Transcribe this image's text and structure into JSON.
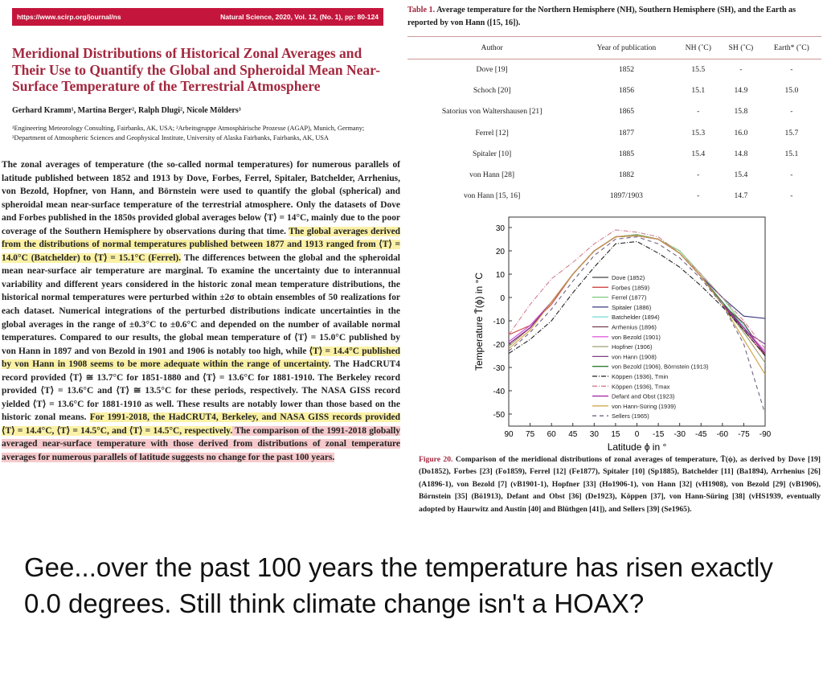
{
  "header": {
    "url": "https://www.scirp.org/journal/ns",
    "citation": "Natural Science, 2020, Vol. 12, (No. 1), pp: 80-124"
  },
  "paper": {
    "title": "Meridional Distributions of Historical Zonal Averages and Their Use to Quantify the Global and Spheroidal Mean Near-Surface Temperature of the Terrestrial Atmosphere",
    "authors": "Gerhard Kramm¹, Martina Berger², Ralph Dlugi², Nicole Mölders³",
    "affiliations": "¹Engineering Meteorology Consulting, Fairbanks, AK, USA; ²Arbeitsgruppe Atmosphärische Prozesse (AGAP), Munich, Germany; ³Department of Atmospheric Sciences and Geophysical Institute, University of Alaska Fairbanks, Fairbanks, AK, USA",
    "abstract": {
      "p1": "The zonal averages of temperature (the so-called normal temperatures) for numerous parallels of latitude published between 1852 and 1913 by Dove, Forbes, Ferrel, Spitaler, Batchelder, Arrhenius, von Bezold, Hopfner, von Hann, and Börnstein were used to quantify the global (spherical) and spheroidal mean near-surface temperature of the terrestrial atmosphere. Only the datasets of Dove and Forbes published in the 1850s provided global averages below ⟨T⟩ = 14°C, mainly due to the poor coverage of the Southern Hemisphere by observations during that time. ",
      "h1": "The global averages derived from the distributions of normal temperatures published between 1877 and 1913 ranged from ⟨T⟩ = 14.0°C (Batchelder) to ⟨T⟩ = 15.1°C (Ferrel).",
      "p2": " The differences between the global and the spheroidal mean near-surface air temperature are marginal. To examine the uncertainty due to interannual variability and different years considered in the historic zonal mean temperature distributions, the historical normal temperatures were perturbed within ±2σ to obtain ensembles of 50 realizations for each dataset. Numerical integrations of the perturbed distributions indicate uncertainties in the global averages in the range of ±0.3°C to ±0.6°C and depended on the number of available normal temperatures. Compared to our results, the global mean temperature of ⟨T⟩ = 15.0°C published by von Hann in 1897 and von Bezold in 1901 and 1906 is notably too high, while ",
      "h2": "⟨T⟩ = 14.4°C published by von Hann in 1908 seems to be more adequate within the range of uncertainty",
      "p3": ". The HadCRUT4 record provided ⟨T⟩ ≅ 13.7°C for 1851-1880 and ⟨T⟩ = 13.6°C for 1881-1910. The Berkeley record provided ⟨T⟩ = 13.6°C and ⟨T⟩ ≅ 13.5°C for these periods, respectively. The NASA GISS record yielded ⟨T⟩ = 13.6°C for 1881-1910 as well. These results are notably lower than those based on the historic zonal means. ",
      "h3": "For 1991-2018, the HadCRUT4, Berkeley, and NASA GISS records provided ⟨T⟩ = 14.4°C, ⟨T⟩ = 14.5°C, and ⟨T⟩ = 14.5°C, respectively.",
      "h4": " The comparison of the 1991-2018 globally averaged near-surface temperature with those derived from distributions of zonal temperature averages for numerous parallels of latitude suggests no change for the past 100 years."
    }
  },
  "table": {
    "label": "Table 1.",
    "caption": " Average temperature for the Northern Hemisphere (NH), Southern Hemisphere (SH), and the Earth as reported by von Hann ([15, 16]).",
    "headers": [
      "Author",
      "Year of publication",
      "NH (˚C)",
      "SH (˚C)",
      "Earth* (˚C)"
    ],
    "rows": [
      [
        "Dove [19]",
        "1852",
        "15.5",
        "-",
        "-"
      ],
      [
        "Schoch [20]",
        "1856",
        "15.1",
        "14.9",
        "15.0"
      ],
      [
        "Satorius von Waltershausen [21]",
        "1865",
        "-",
        "15.8",
        "-"
      ],
      [
        "Ferrel [12]",
        "1877",
        "15.3",
        "16.0",
        "15.7"
      ],
      [
        "Spitaler [10]",
        "1885",
        "15.4",
        "14.8",
        "15.1"
      ],
      [
        "von Hann [28]",
        "1882",
        "-",
        "15.4",
        "-"
      ],
      [
        "von Hann [15, 16]",
        "1897/1903",
        "-",
        "14.7",
        "-"
      ]
    ]
  },
  "chart_data": {
    "type": "line",
    "xlabel": "Latitude ϕ in °",
    "ylabel": "Temperature T̄(ϕ) in °C",
    "xlim": [
      90,
      -90
    ],
    "ylim": [
      -55,
      33
    ],
    "xticks": [
      90,
      75,
      60,
      45,
      30,
      15,
      0,
      -15,
      -30,
      -45,
      -60,
      -75,
      -90
    ],
    "yticks": [
      30,
      20,
      10,
      0,
      -10,
      -20,
      -30,
      -40,
      -50
    ],
    "legend_position": "center-right",
    "x": [
      90,
      75,
      60,
      45,
      30,
      15,
      0,
      -15,
      -30,
      -45,
      -60,
      -75,
      -90
    ],
    "series": [
      {
        "name": "Dove (1852)",
        "color": "#444444",
        "dash": "",
        "values": [
          -20,
          -13,
          -2,
          10,
          20,
          26,
          26.5,
          25,
          19,
          9,
          -2,
          -13,
          -24
        ]
      },
      {
        "name": "Forbes (1859)",
        "color": "#d04848",
        "dash": "",
        "values": [
          -16,
          -12,
          -3,
          10,
          20,
          26,
          27,
          25,
          19,
          9,
          -2,
          -14,
          -25
        ]
      },
      {
        "name": "Ferrel (1877)",
        "color": "#7cc97c",
        "dash": "",
        "values": [
          -20,
          -13,
          -2,
          10,
          20,
          26,
          27,
          25,
          20,
          10,
          0,
          -12,
          -24
        ]
      },
      {
        "name": "Spitaler (1886)",
        "color": "#3a3a80",
        "dash": "",
        "values": [
          -19,
          -12,
          -2,
          10,
          20,
          26,
          26.5,
          25,
          19,
          9,
          0,
          -8,
          -9
        ]
      },
      {
        "name": "Batchelder (1894)",
        "color": "#80dede",
        "dash": "",
        "values": [
          -20,
          -13,
          -2,
          10,
          20,
          26,
          26.5,
          25,
          19,
          9,
          -2,
          -12,
          -24
        ]
      },
      {
        "name": "Arrhenius (1896)",
        "color": "#704050",
        "dash": "",
        "values": [
          -20,
          -13,
          -2,
          10,
          20,
          26,
          26.5,
          25,
          19,
          9,
          -3,
          -11,
          -25
        ]
      },
      {
        "name": "von Bezold (1901)",
        "color": "#e060e0",
        "dash": "",
        "values": [
          -19,
          -12,
          -2,
          10,
          20,
          26,
          26.5,
          25,
          19,
          9,
          -2,
          -13,
          -23
        ]
      },
      {
        "name": "Hopfner (1906)",
        "color": "#a0a070",
        "dash": "",
        "values": [
          -21,
          -13,
          -2,
          10,
          20,
          26,
          26.5,
          25,
          19,
          9,
          -3,
          -15,
          -28
        ]
      },
      {
        "name": "von Hann (1908)",
        "color": "#804080",
        "dash": "",
        "values": [
          -20,
          -13,
          -2,
          10,
          20,
          26,
          26.5,
          25,
          19,
          9,
          -3,
          -14,
          -20
        ]
      },
      {
        "name": "von Bezold (1906), Börnstein (1913)",
        "color": "#2e7d32",
        "dash": "",
        "values": [
          -20,
          -13,
          -2,
          10,
          20,
          26,
          26.5,
          25,
          19,
          9,
          -2,
          -13,
          -24
        ]
      },
      {
        "name": "Köppen (1936), Tmin",
        "color": "#222222",
        "dash": "6 2 1 2",
        "values": [
          -24,
          -18,
          -10,
          2,
          13,
          23,
          24,
          19,
          13,
          5,
          -4,
          -14,
          -25
        ]
      },
      {
        "name": "Köppen (1936), Tmax",
        "color": "#d08090",
        "dash": "6 2 1 2",
        "values": [
          -16,
          -3,
          8,
          15,
          23,
          29,
          28,
          26,
          19,
          10,
          0,
          -10,
          -22
        ]
      },
      {
        "name": "Defant and Obst (1923)",
        "color": "#a020a0",
        "dash": "",
        "values": [
          -20,
          -13,
          -2,
          10,
          20,
          26,
          26.5,
          25,
          19,
          9,
          -3,
          -13,
          -24
        ]
      },
      {
        "name": "von Hann-Süring (1939)",
        "color": "#d0a040",
        "dash": "",
        "values": [
          -22,
          -14,
          -2,
          10,
          20,
          26,
          26.5,
          25,
          19,
          9,
          -3,
          -18,
          -33
        ]
      },
      {
        "name": "Sellers (1965)",
        "color": "#706080",
        "dash": "5 4",
        "values": [
          -23,
          -15,
          -5,
          7,
          18,
          25,
          26,
          23,
          17,
          8,
          -3,
          -20,
          -50
        ]
      }
    ]
  },
  "figure": {
    "label": "Figure 20.",
    "caption": " Comparison of the meridional distributions of zonal averages of temperature, T̄(ϕ), as derived by Dove [19] (Do1852), Forbes [23] (Fo1859), Ferrel [12] (Fe1877), Spitaler [10] (Sp1885), Batchelder [11] (Ba1894), Arrhenius [26] (A1896-1), von Bezold [7] (vB1901-1), Hopfner [33] (Ho1906-1), von Hann [32] (vH1908), von Bezold [29] (vB1906), Börnstein [35] (Bö1913), Defant and Obst [36] (De1923), Köppen [37], von Hann-Süring [38] (vHS1939, eventually adopted by Haurwitz and Austin [40] and Blüthgen [41]), and Sellers [39] (Se1965)."
  },
  "meme": {
    "text": "Gee...over the past 100 years the temperature has risen exactly 0.0 degrees. Still think climate change isn't a HOAX?"
  }
}
